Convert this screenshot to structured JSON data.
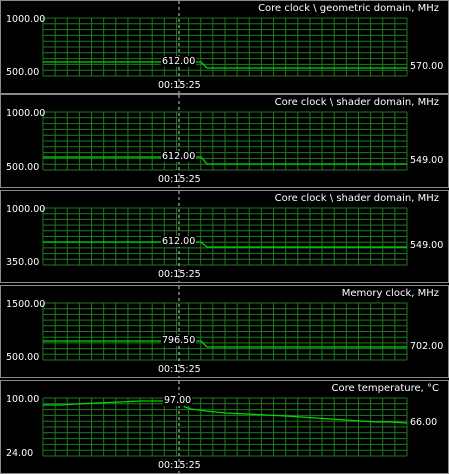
{
  "accent_color": "#00d800",
  "grid_color": "#1f7a1f",
  "cursor_time": "00:15:25",
  "panels": [
    {
      "title": "Core clock \\ geometric domain, MHz",
      "y_max_label": "1000.00",
      "y_min_label": "500.00",
      "cursor_value": "612.00",
      "current_value": "570.00",
      "time_label": "00:15:25"
    },
    {
      "title": "Core clock \\ shader domain, MHz",
      "y_max_label": "1000.00",
      "y_min_label": "500.00",
      "cursor_value": "612.00",
      "current_value": "549.00",
      "time_label": "00:15:25"
    },
    {
      "title": "Core clock \\ shader domain, MHz",
      "y_max_label": "1000.00",
      "y_min_label": "350.00",
      "cursor_value": "612.00",
      "current_value": "549.00",
      "time_label": "00:15:25"
    },
    {
      "title": "Memory clock, MHz",
      "y_max_label": "1500.00",
      "y_min_label": "500.00",
      "cursor_value": "796.50",
      "current_value": "702.00",
      "time_label": "00:15:25"
    },
    {
      "title": "Core temperature, °C",
      "y_max_label": "100.00",
      "y_min_label": "24.00",
      "cursor_value": "97.00",
      "current_value": "66.00",
      "time_label": "00:15:25"
    }
  ]
}
